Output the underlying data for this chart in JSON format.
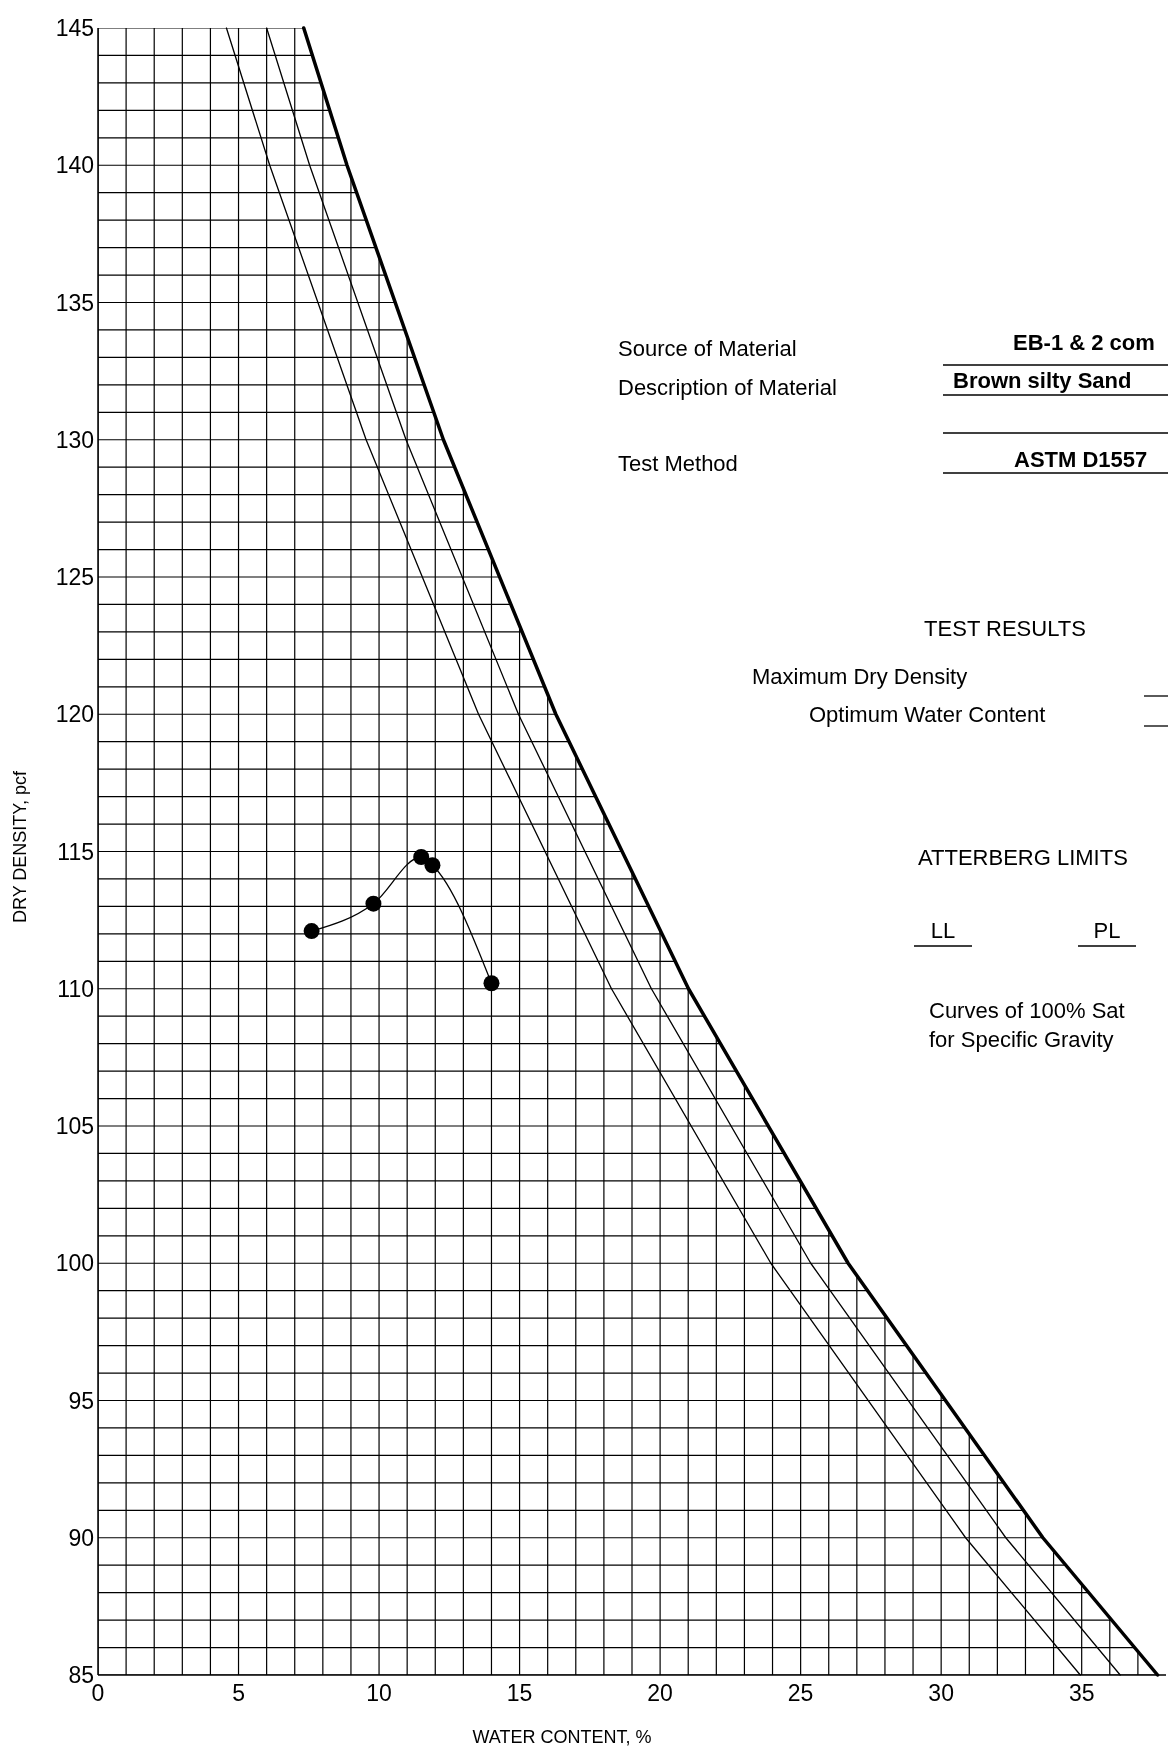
{
  "chart_data": {
    "type": "line",
    "xlabel": "WATER CONTENT, %",
    "ylabel": "DRY DENSITY, pcf",
    "xlim": [
      0,
      38
    ],
    "ylim": [
      85,
      145
    ],
    "xticks": [
      0,
      {
        "value": 1,
        "label": null
      },
      {
        "value": 2,
        "label": null
      },
      {
        "value": 3,
        "label": null
      },
      {
        "value": 4,
        "label": null
      },
      5,
      {
        "value": 6,
        "label": null
      },
      {
        "value": 7,
        "label": null
      },
      {
        "value": 8,
        "label": null
      },
      {
        "value": 9,
        "label": null
      },
      10,
      {
        "value": 11,
        "label": null
      },
      {
        "value": 12,
        "label": null
      },
      {
        "value": 13,
        "label": null
      },
      {
        "value": 14,
        "label": null
      },
      15,
      {
        "value": 16,
        "label": null
      },
      {
        "value": 17,
        "label": null
      },
      {
        "value": 18,
        "label": null
      },
      {
        "value": 19,
        "label": null
      },
      20,
      {
        "value": 21,
        "label": null
      },
      {
        "value": 22,
        "label": null
      },
      {
        "value": 23,
        "label": null
      },
      {
        "value": 24,
        "label": null
      },
      25,
      {
        "value": 26,
        "label": null
      },
      {
        "value": 27,
        "label": null
      },
      {
        "value": 28,
        "label": null
      },
      {
        "value": 29,
        "label": null
      },
      30,
      {
        "value": 31,
        "label": null
      },
      {
        "value": 32,
        "label": null
      },
      {
        "value": 33,
        "label": null
      },
      {
        "value": 34,
        "label": null
      },
      35,
      {
        "value": 36,
        "label": null
      },
      {
        "value": 37,
        "label": null
      },
      {
        "value": 38,
        "label": null
      }
    ],
    "yticks": [
      85,
      {
        "value": 86,
        "label": null
      },
      {
        "value": 87,
        "label": null
      },
      {
        "value": 88,
        "label": null
      },
      {
        "value": 89,
        "label": null
      },
      90,
      {
        "value": 91,
        "label": null
      },
      {
        "value": 92,
        "label": null
      },
      {
        "value": 93,
        "label": null
      },
      {
        "value": 94,
        "label": null
      },
      95,
      {
        "value": 96,
        "label": null
      },
      {
        "value": 97,
        "label": null
      },
      {
        "value": 98,
        "label": null
      },
      {
        "value": 99,
        "label": null
      },
      100,
      {
        "value": 101,
        "label": null
      },
      {
        "value": 102,
        "label": null
      },
      {
        "value": 103,
        "label": null
      },
      {
        "value": 104,
        "label": null
      },
      105,
      {
        "value": 106,
        "label": null
      },
      {
        "value": 107,
        "label": null
      },
      {
        "value": 108,
        "label": null
      },
      {
        "value": 109,
        "label": null
      },
      110,
      {
        "value": 111,
        "label": null
      },
      {
        "value": 112,
        "label": null
      },
      {
        "value": 113,
        "label": null
      },
      {
        "value": 114,
        "label": null
      },
      115,
      {
        "value": 116,
        "label": null
      },
      {
        "value": 117,
        "label": null
      },
      {
        "value": 118,
        "label": null
      },
      {
        "value": 119,
        "label": null
      },
      120,
      {
        "value": 121,
        "label": null
      },
      {
        "value": 122,
        "label": null
      },
      {
        "value": 123,
        "label": null
      },
      {
        "value": 124,
        "label": null
      },
      125,
      {
        "value": 126,
        "label": null
      },
      {
        "value": 127,
        "label": null
      },
      {
        "value": 128,
        "label": null
      },
      {
        "value": 129,
        "label": null
      },
      130,
      {
        "value": 131,
        "label": null
      },
      {
        "value": 132,
        "label": null
      },
      {
        "value": 133,
        "label": null
      },
      {
        "value": 134,
        "label": null
      },
      135,
      {
        "value": 136,
        "label": null
      },
      {
        "value": 137,
        "label": null
      },
      {
        "value": 138,
        "label": null
      },
      {
        "value": 139,
        "label": null
      },
      140,
      {
        "value": 141,
        "label": null
      },
      {
        "value": 142,
        "label": null
      },
      {
        "value": 143,
        "label": null
      },
      {
        "value": 144,
        "label": null
      },
      145
    ],
    "grid": true,
    "series": [
      {
        "marker": "circle",
        "color": "#000000",
        "x": [
          7.6,
          9.8,
          11.5,
          11.9,
          14.0
        ],
        "values": [
          112.1,
          113.1,
          114.8,
          114.5,
          110.2
        ]
      },
      {
        "marker": "none",
        "color": "#000000",
        "x": [
          4.57,
          6.11,
          9.54,
          13.54,
          18.27,
          23.94,
          30.87,
          34.95
        ],
        "values": [
          145,
          140,
          130,
          120,
          110,
          100,
          90,
          85
        ]
      },
      {
        "marker": "none",
        "color": "#000000",
        "x": [
          6.0,
          7.53,
          10.96,
          14.96,
          19.69,
          25.36,
          32.3,
          36.37
        ],
        "values": [
          145,
          140,
          130,
          120,
          110,
          100,
          90,
          85
        ]
      },
      {
        "marker": "none",
        "color": "#000000",
        "x": [
          7.32,
          8.86,
          12.29,
          16.29,
          21.01,
          26.69,
          33.62,
          37.7
        ],
        "values": [
          145,
          140,
          130,
          120,
          110,
          100,
          90,
          85
        ]
      }
    ],
    "annotations": [
      "Source of Material",
      "Description of Material",
      "Test Method",
      "EB-1 & 2 com",
      "Brown silty Sand",
      "ASTM D1557",
      "TEST RESULTS",
      "Maximum Dry Density",
      "Optimum Water Content",
      "ATTERBERG LIMITS",
      "LL",
      "PL",
      "Curves of 100% Sat",
      "for Specific Gravity"
    ]
  }
}
